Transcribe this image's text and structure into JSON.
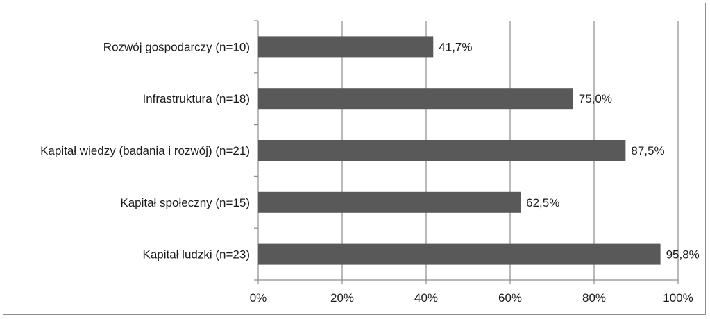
{
  "chart_data": {
    "type": "bar",
    "orientation": "horizontal",
    "categories": [
      "Rozwój gospodarczy (n=10)",
      "Infrastruktura (n=18)",
      "Kapitał wiedzy (badania i rozwój) (n=21)",
      "Kapitał społeczny (n=15)",
      "Kapitał ludzki (n=23)"
    ],
    "values": [
      41.7,
      75.0,
      87.5,
      62.5,
      95.8
    ],
    "value_labels": [
      "41,7%",
      "75,0%",
      "87,5%",
      "62,5%",
      "95,8%"
    ],
    "xlim": [
      0,
      100
    ],
    "x_ticks": [
      0,
      20,
      40,
      60,
      80,
      100
    ],
    "x_tick_labels": [
      "0%",
      "20%",
      "40%",
      "60%",
      "80%",
      "100%"
    ],
    "grid": true,
    "legend": "none",
    "title": "",
    "xlabel": "",
    "ylabel": "",
    "colors": {
      "bar": "#595959",
      "grid": "#8c8c8c",
      "axis": "#8c8c8c",
      "frame": "#8c8c8c"
    }
  }
}
